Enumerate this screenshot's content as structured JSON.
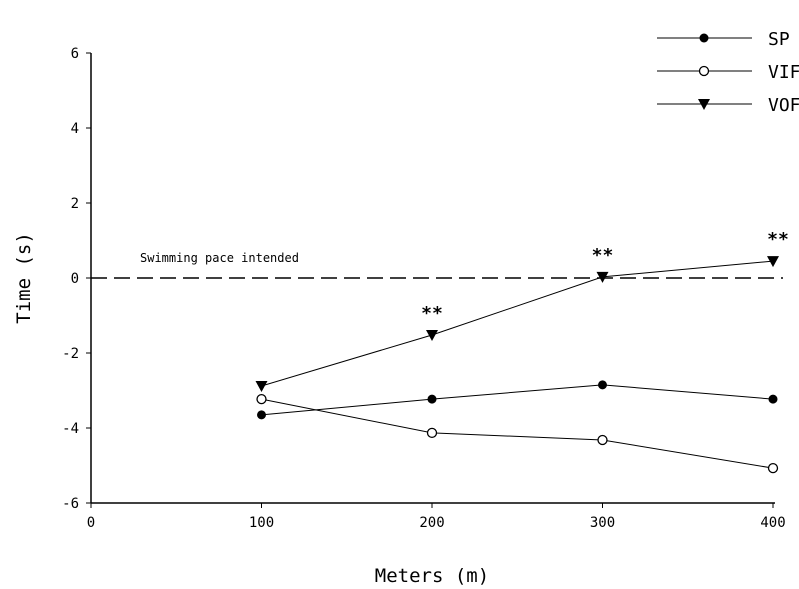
{
  "chart_data": {
    "type": "line",
    "title": "",
    "xlabel": "Meters (m)",
    "ylabel": "Time (s)",
    "xlim": [
      0,
      400
    ],
    "ylim": [
      -6,
      6
    ],
    "xticks": [
      0,
      100,
      200,
      300,
      400
    ],
    "yticks": [
      -6,
      -4,
      -2,
      0,
      2,
      4,
      6
    ],
    "x": [
      100,
      200,
      300,
      400
    ],
    "series": [
      {
        "name": "SP",
        "marker": "filled-circle",
        "values": [
          -3.65,
          -3.23,
          -2.85,
          -3.23
        ]
      },
      {
        "name": "VIF",
        "marker": "open-circle",
        "values": [
          -3.23,
          -4.13,
          -4.32,
          -5.07
        ]
      },
      {
        "name": "VOF",
        "marker": "filled-triangle-down",
        "values": [
          -2.88,
          -1.52,
          0.03,
          0.45
        ]
      }
    ],
    "reference_line": {
      "y": 0,
      "label": "Swimming pace intended",
      "style": "dashed"
    },
    "annotations": [
      {
        "x": 200,
        "text": "**"
      },
      {
        "x": 300,
        "text": "**"
      },
      {
        "x": 400,
        "text": "**"
      }
    ],
    "legend": "top-right",
    "grid": false
  }
}
